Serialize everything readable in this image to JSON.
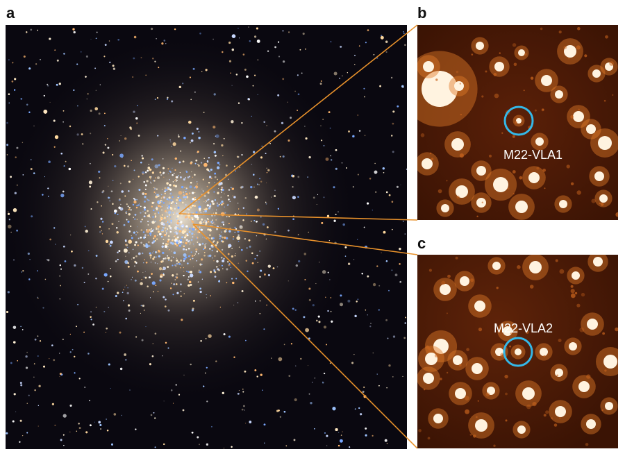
{
  "panels": {
    "a": {
      "letter": "a"
    },
    "b": {
      "letter": "b",
      "label": "M22-VLA1"
    },
    "c": {
      "letter": "c",
      "label": "M22-VLA2"
    }
  },
  "colors": {
    "connector": "#e8912b",
    "circle": "#34b8e8",
    "inset_background": "#3a1304",
    "cluster_background": "#0a0810"
  }
}
